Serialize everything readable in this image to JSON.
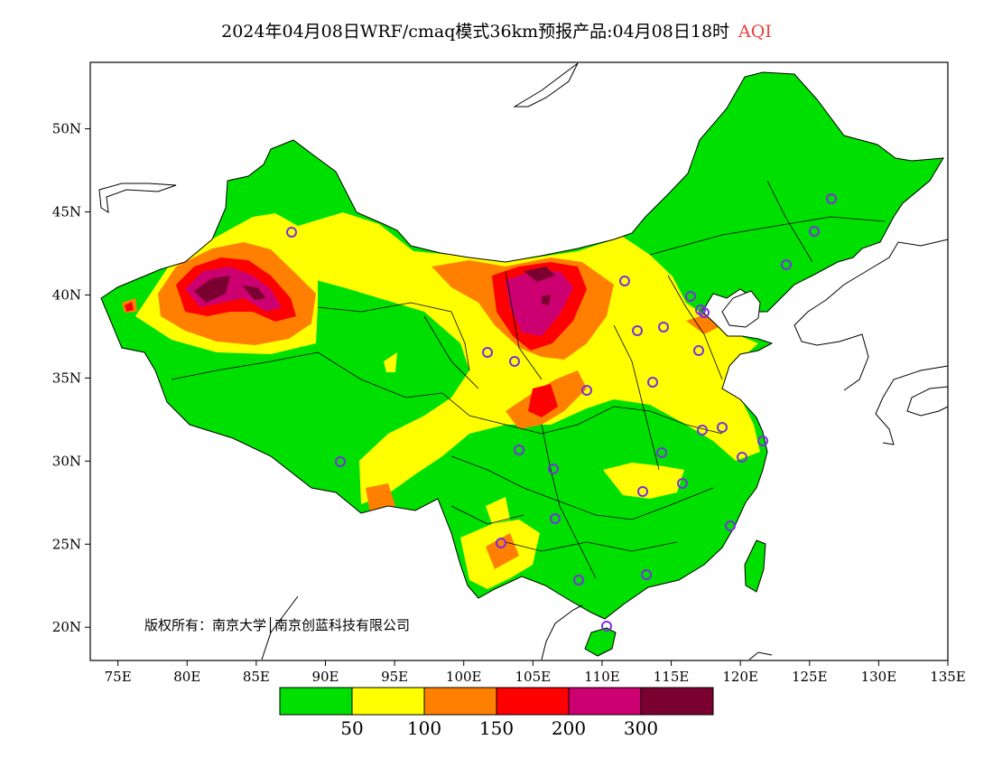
{
  "title": {
    "main": "2024年04月08日WRF/cmaq模式36km预报产品:04月08日18时",
    "variable": "AQI",
    "variable_color": "#e8413a"
  },
  "map": {
    "lon_range": [
      73,
      135
    ],
    "lat_range": [
      18,
      54
    ],
    "lat_ticks": [
      {
        "value": 20,
        "label": "20N"
      },
      {
        "value": 25,
        "label": "25N"
      },
      {
        "value": 30,
        "label": "30N"
      },
      {
        "value": 35,
        "label": "35N"
      },
      {
        "value": 40,
        "label": "40N"
      },
      {
        "value": 45,
        "label": "45N"
      },
      {
        "value": 50,
        "label": "50N"
      }
    ],
    "lon_ticks": [
      {
        "value": 75,
        "label": "75E"
      },
      {
        "value": 80,
        "label": "80E"
      },
      {
        "value": 85,
        "label": "85E"
      },
      {
        "value": 90,
        "label": "90E"
      },
      {
        "value": 95,
        "label": "95E"
      },
      {
        "value": 100,
        "label": "100E"
      },
      {
        "value": 105,
        "label": "105E"
      },
      {
        "value": 110,
        "label": "110E"
      },
      {
        "value": 115,
        "label": "115E"
      },
      {
        "value": 120,
        "label": "120E"
      },
      {
        "value": 125,
        "label": "125E"
      },
      {
        "value": 130,
        "label": "130E"
      },
      {
        "value": 135,
        "label": "135E"
      }
    ],
    "copyright": "版权所有：南京大学│南京创蓝科技有限公司",
    "station_color": "#7b2fe0"
  },
  "legend": {
    "colors": [
      "#00e000",
      "#ffff00",
      "#ff8000",
      "#ff0000",
      "#cc0070",
      "#7a0030"
    ],
    "labels": [
      "50",
      "100",
      "150",
      "200",
      "300"
    ]
  }
}
